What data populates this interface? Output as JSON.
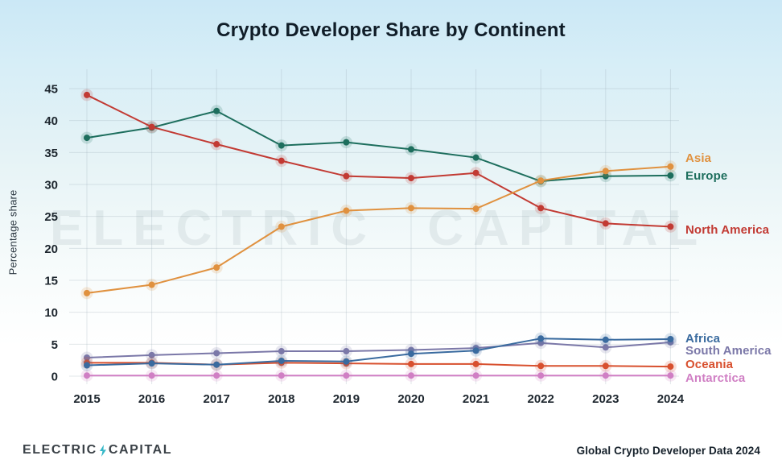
{
  "title": "Crypto Developer Share by Continent",
  "watermark": "ELECTRIC CAPITAL",
  "footer": {
    "logo_word_left": "ELECTRIC",
    "logo_word_right": "CAPITAL",
    "bolt_color": "#35b8c8",
    "right_text": "Global Crypto Developer Data 2024"
  },
  "chart_data": {
    "type": "line",
    "title": "Crypto Developer Share by Continent",
    "xlabel": "",
    "ylabel": "Percentage share",
    "x": [
      2015,
      2016,
      2017,
      2018,
      2019,
      2020,
      2021,
      2022,
      2023,
      2024
    ],
    "ylim": [
      0,
      45
    ],
    "yticks": [
      0,
      5,
      10,
      15,
      20,
      25,
      30,
      35,
      40,
      45
    ],
    "grid": true,
    "legend_position": "right-end-of-lines",
    "series": [
      {
        "name": "Asia",
        "color": "#e0913f",
        "values": [
          13.0,
          14.3,
          17.0,
          23.4,
          25.9,
          26.3,
          26.2,
          30.6,
          32.1,
          32.8
        ]
      },
      {
        "name": "Europe",
        "color": "#1d6e5d",
        "values": [
          37.3,
          38.9,
          41.5,
          36.1,
          36.6,
          35.5,
          34.2,
          30.5,
          31.3,
          31.4
        ]
      },
      {
        "name": "North America",
        "color": "#c23a33",
        "values": [
          44.0,
          39.0,
          36.3,
          33.7,
          31.3,
          31.0,
          31.8,
          26.3,
          23.9,
          23.4
        ]
      },
      {
        "name": "Africa",
        "color": "#3a6b9f",
        "values": [
          1.7,
          2.0,
          1.8,
          2.4,
          2.3,
          3.5,
          4.0,
          5.9,
          5.7,
          5.8
        ]
      },
      {
        "name": "South America",
        "color": "#7b78a8",
        "values": [
          2.9,
          3.3,
          3.6,
          3.9,
          3.9,
          4.1,
          4.4,
          5.2,
          4.5,
          5.3
        ]
      },
      {
        "name": "Oceania",
        "color": "#d8502e",
        "values": [
          2.1,
          2.1,
          1.8,
          2.1,
          2.0,
          1.9,
          1.9,
          1.6,
          1.6,
          1.5
        ]
      },
      {
        "name": "Antarctica",
        "color": "#d07fc4",
        "values": [
          0.1,
          0.1,
          0.1,
          0.1,
          0.1,
          0.1,
          0.1,
          0.1,
          0.1,
          0.1
        ]
      }
    ]
  }
}
